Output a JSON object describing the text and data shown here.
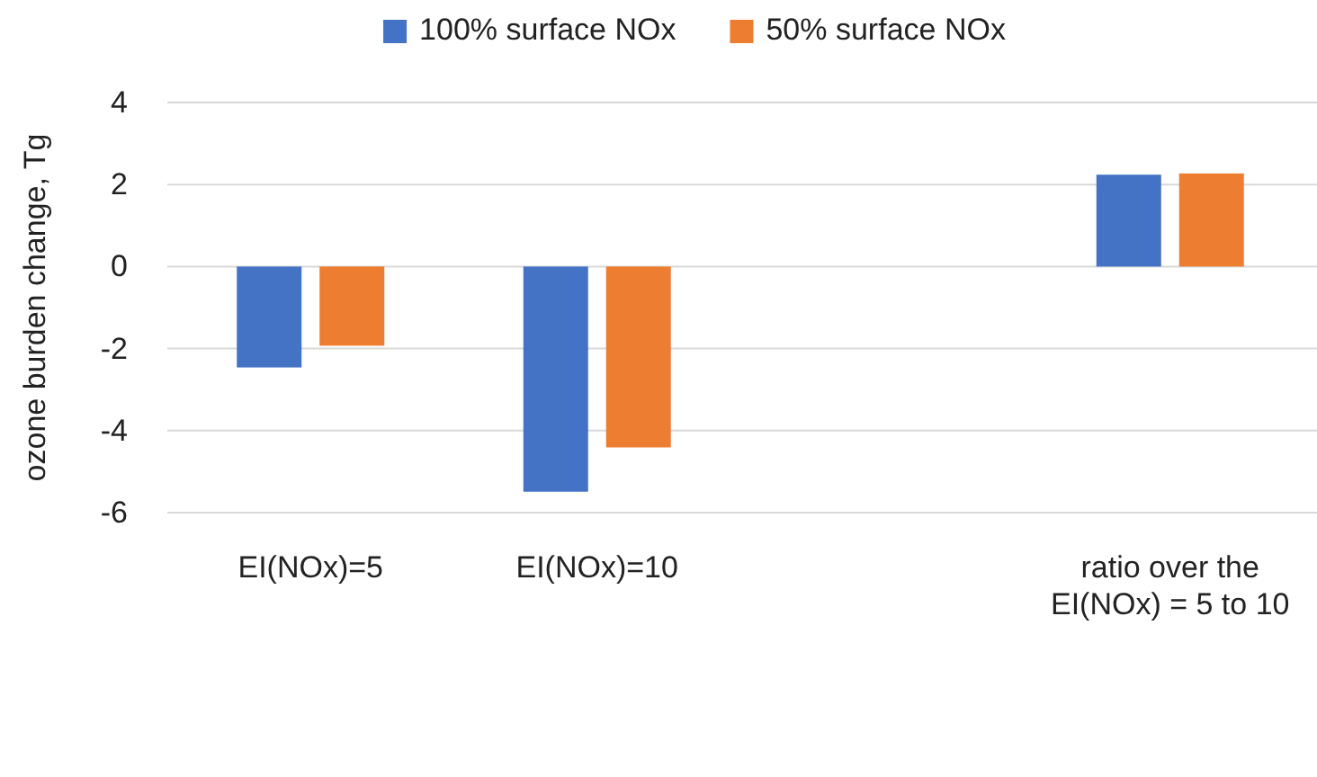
{
  "chart_data": {
    "type": "bar",
    "ylabel": "ozone burden change, Tg",
    "categories": [
      "EI(NOx)=5",
      "EI(NOx)=10",
      null,
      "ratio over the EI(NOx) = 5 to 10"
    ],
    "series": [
      {
        "name": "100% surface NOx",
        "color": "#4472c4",
        "values": [
          -2.46,
          -5.49,
          null,
          2.24
        ]
      },
      {
        "name": "50% surface NOx",
        "color": "#ed7d31",
        "values": [
          -1.93,
          -4.41,
          null,
          2.27
        ]
      }
    ],
    "ylim": [
      -6,
      4
    ],
    "yticks": [
      -6,
      -4,
      -2,
      0,
      2,
      4
    ],
    "grid": "y",
    "legend": "top"
  }
}
